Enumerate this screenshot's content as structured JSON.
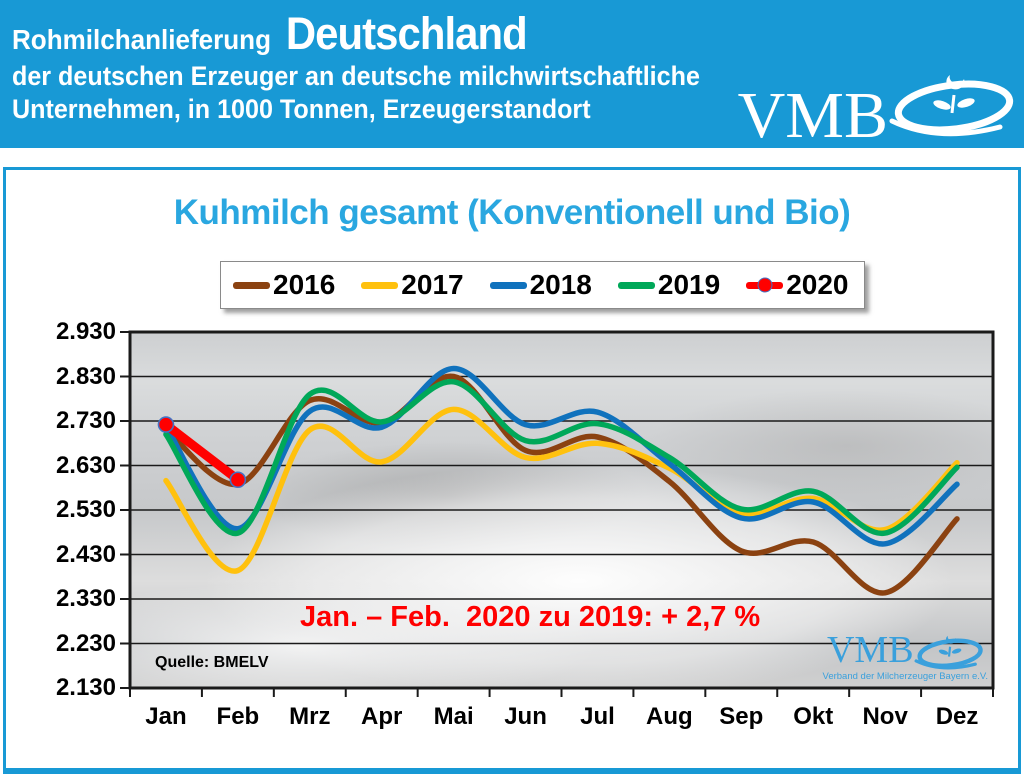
{
  "banner": {
    "kicker": "Rohmilchanlieferung",
    "country": "Deutschland",
    "subtitle1": "der deutschen Erzeuger an deutsche milchwirtschaftliche",
    "subtitle2": "Unternehmen, in 1000 Tonnen, Erzeugerstandort",
    "logo_text": "VMB",
    "background_color": "#1899D5"
  },
  "main": {
    "title": "Kuhmilch gesamt (Konventionell und Bio)",
    "title_color": "#2AA7E0",
    "annotation": "Jan. – Feb.  2020 zu 2019: + 2,7 %",
    "annotation_color": "#FF0000",
    "source": "Quelle: BMELV"
  },
  "watermark": {
    "logo_text": "VMB",
    "subtext": "Verband der Milcherzeuger Bayern e.V."
  },
  "chart_data": {
    "type": "line",
    "title": "Kuhmilch gesamt (Konventionell und Bio)",
    "unit": "1000 Tonnen",
    "categories": [
      "Jan",
      "Feb",
      "Mrz",
      "Apr",
      "Mai",
      "Jun",
      "Jul",
      "Aug",
      "Sep",
      "Okt",
      "Nov",
      "Dez"
    ],
    "series": [
      {
        "name": "2016",
        "color": "#8B4211",
        "values": [
          2712,
          2588,
          2776,
          2726,
          2830,
          2664,
          2694,
          2594,
          2438,
          2458,
          2344,
          2510
        ]
      },
      {
        "name": "2017",
        "color": "#FFC10E",
        "values": [
          2596,
          2394,
          2710,
          2638,
          2756,
          2648,
          2680,
          2624,
          2522,
          2556,
          2486,
          2636
        ]
      },
      {
        "name": "2018",
        "color": "#1072BD",
        "values": [
          2718,
          2488,
          2752,
          2716,
          2848,
          2722,
          2750,
          2634,
          2512,
          2548,
          2454,
          2588
        ]
      },
      {
        "name": "2019",
        "color": "#00A859",
        "values": [
          2700,
          2478,
          2790,
          2728,
          2818,
          2686,
          2724,
          2648,
          2532,
          2572,
          2478,
          2626
        ]
      },
      {
        "name": "2020",
        "color": "#FF0000",
        "marker": true,
        "marker_ring_color": "#4472C4",
        "values": [
          2722,
          2598
        ]
      }
    ],
    "ylim": [
      2130,
      2930
    ],
    "ytick_step": 100,
    "ytick_labels": [
      "2.930",
      "2.830",
      "2.730",
      "2.630",
      "2.530",
      "2.430",
      "2.330",
      "2.230",
      "2.130"
    ],
    "grid": "horizontal",
    "legend_position": "top"
  }
}
